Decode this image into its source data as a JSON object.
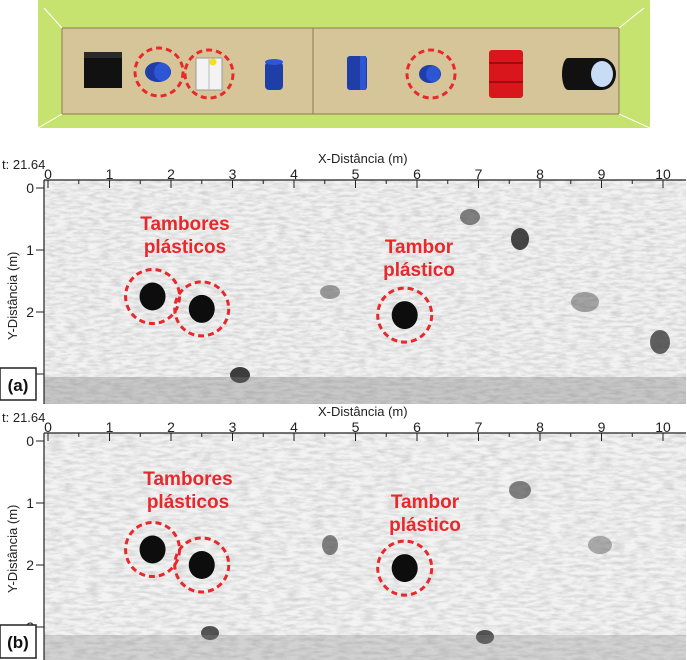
{
  "scene": {
    "objects": [
      "black-box-icon",
      "blue-drum-icon",
      "white-container-icon",
      "blue-drum-icon",
      "blue-drum-icon",
      "blue-drum-icon",
      "red-drum-icon",
      "black-cylinder-icon"
    ],
    "colors": {
      "background": "#c5e36e",
      "container": "#d7c59a",
      "highlight": "#e8282b"
    }
  },
  "panels": [
    {
      "tag": "(a)",
      "t_label": "t: 21.64",
      "x_title": "X-Distância (m)",
      "y_title": "Y-Distância (m)",
      "x_ticks": [
        "0",
        "1",
        "2",
        "3",
        "4",
        "5",
        "6",
        "7",
        "8",
        "9",
        "10"
      ],
      "y_ticks": [
        "0",
        "1",
        "2",
        "3"
      ],
      "annotations": [
        {
          "line1": "Tambores",
          "line2": "plásticos"
        },
        {
          "line1": "Tambor",
          "line2": "plástico"
        }
      ],
      "targets": [
        {
          "x": 1.7,
          "y": 1.75
        },
        {
          "x": 2.5,
          "y": 1.95
        },
        {
          "x": 5.8,
          "y": 2.05
        }
      ]
    },
    {
      "tag": "(b)",
      "t_label": "t: 21.64",
      "x_title": "X-Distância (m)",
      "y_title": "Y-Distância (m)",
      "x_ticks": [
        "0",
        "1",
        "2",
        "3",
        "4",
        "5",
        "6",
        "7",
        "8",
        "9",
        "10"
      ],
      "y_ticks": [
        "0",
        "1",
        "2",
        "3"
      ],
      "annotations": [
        {
          "line1": "Tambores",
          "line2": "plásticos"
        },
        {
          "line1": "Tambor",
          "line2": "plástico"
        }
      ],
      "targets": [
        {
          "x": 1.7,
          "y": 1.75
        },
        {
          "x": 2.5,
          "y": 2.0
        },
        {
          "x": 5.8,
          "y": 2.05
        }
      ]
    }
  ]
}
